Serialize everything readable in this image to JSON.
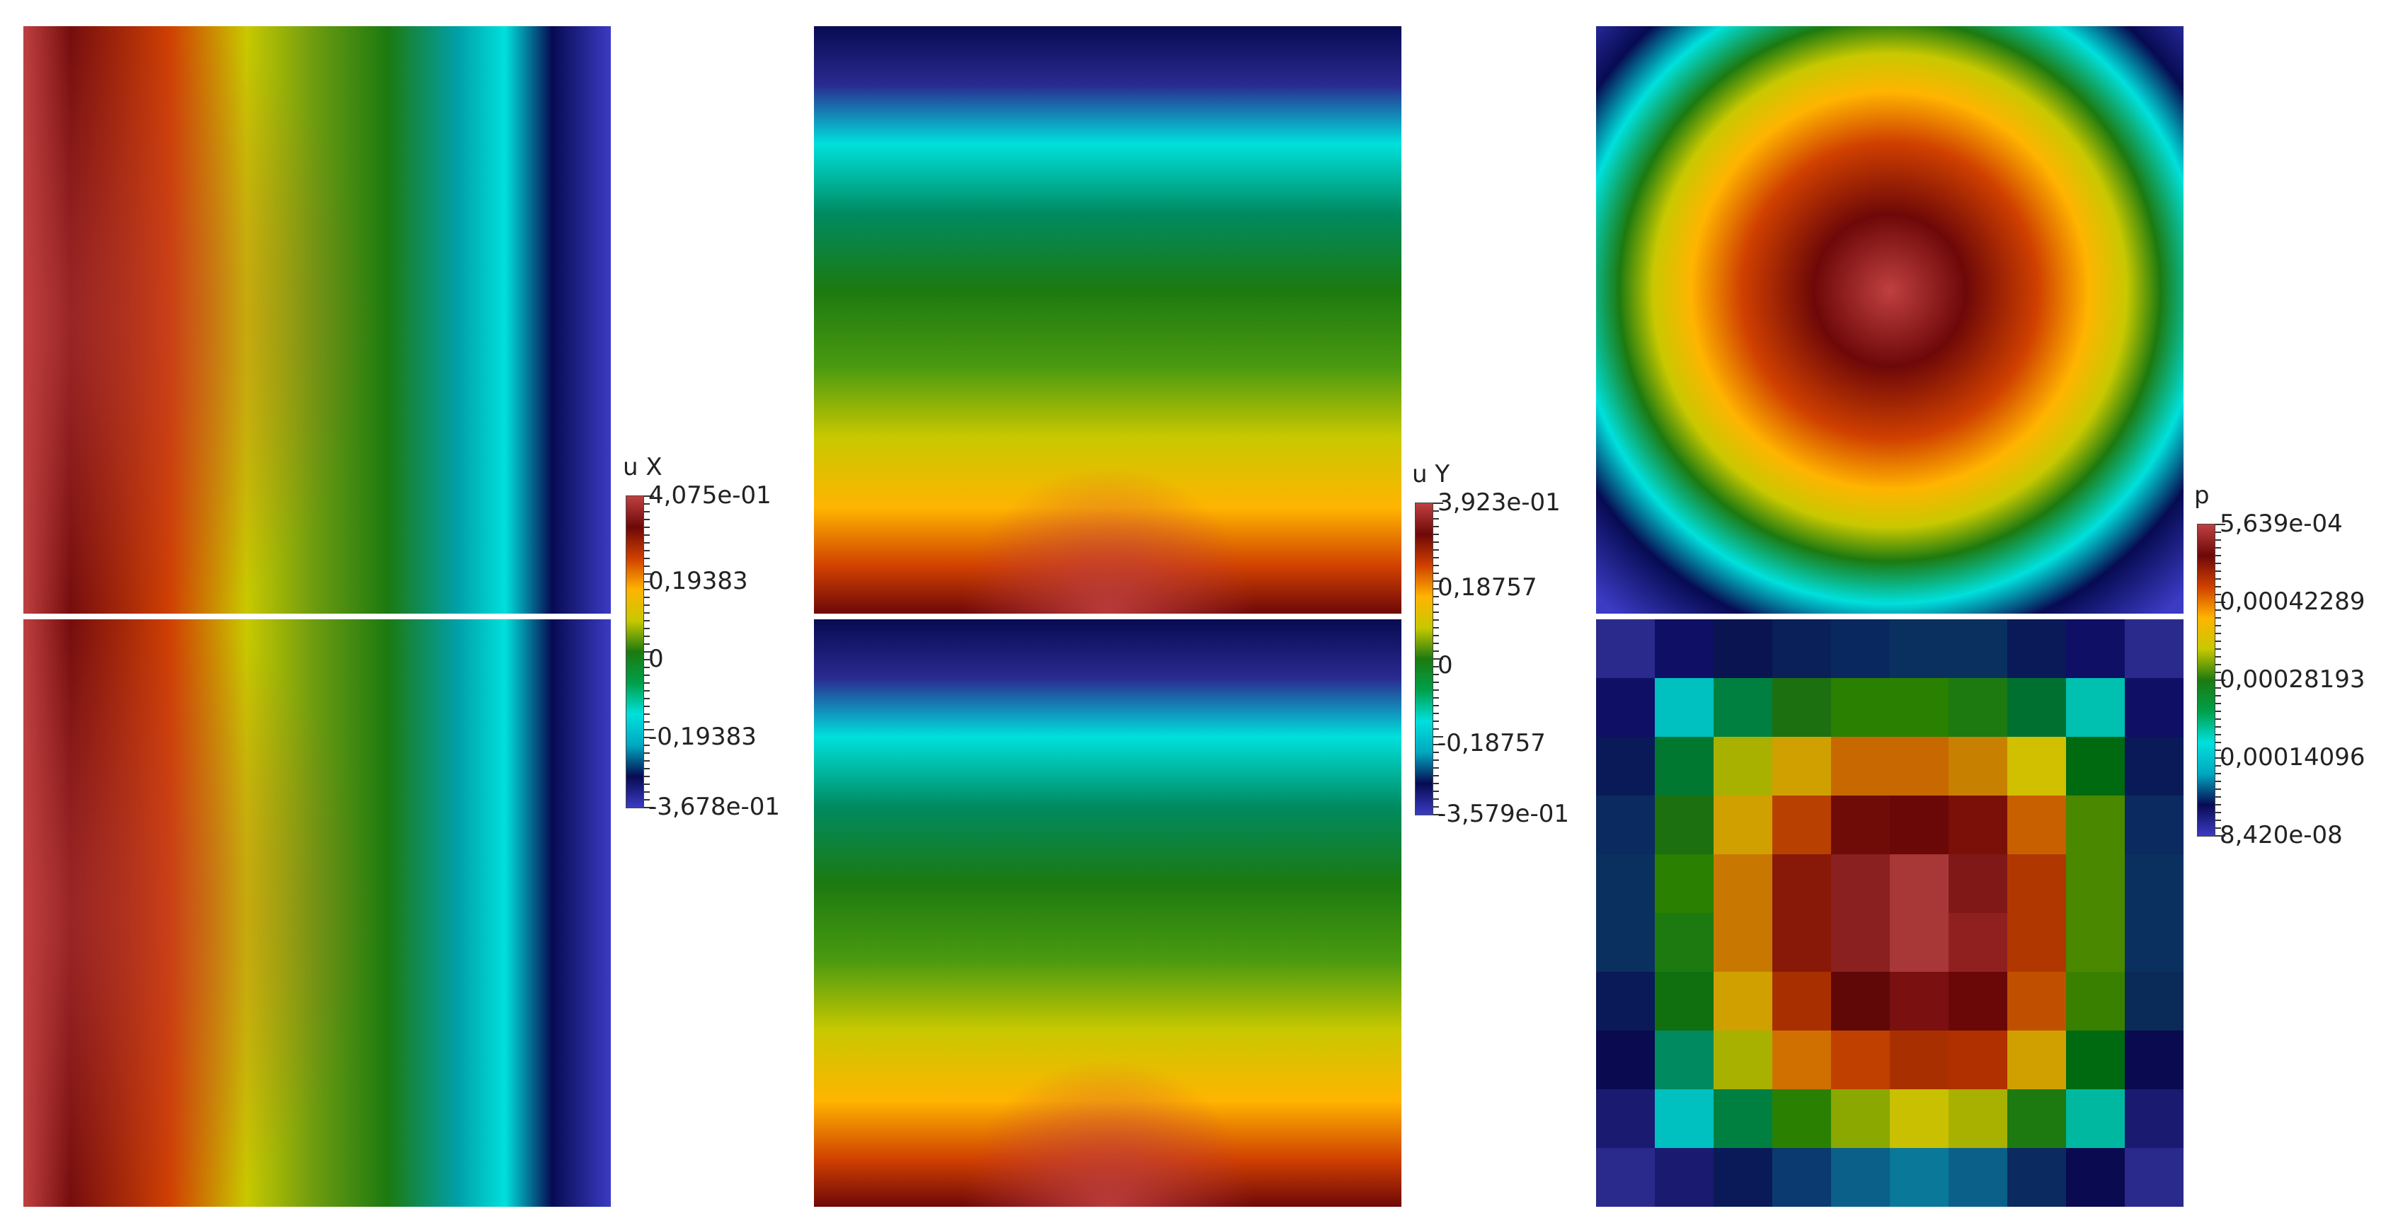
{
  "colormap": [
    "#3b3bc4",
    "#070b52",
    "#00a8c0",
    "#00e0dc",
    "#00a04a",
    "#1c7a10",
    "#c8c800",
    "#ffb400",
    "#d04000",
    "#6e0808",
    "#c04040"
  ],
  "panels": [
    {
      "id": "ux-top"
    },
    {
      "id": "ux-bottom"
    },
    {
      "id": "uy-top"
    },
    {
      "id": "uy-bottom"
    },
    {
      "id": "p-top"
    },
    {
      "id": "p-bottom"
    }
  ],
  "chart_data": [
    {
      "type": "heatmap",
      "title": "",
      "variable": "u X",
      "colorbar": {
        "title": "u X",
        "max": 0.4075,
        "min": -0.3678,
        "max_label": "4,075e-01",
        "min_label": "-3,678e-01",
        "ticks": [
          {
            "label": "4,075e-01",
            "value": 0.4075
          },
          {
            "label": "0,19383",
            "value": 0.19383
          },
          {
            "label": "0",
            "value": 0
          },
          {
            "label": "-0,19383",
            "value": -0.19383
          },
          {
            "label": "-3,678e-01",
            "value": -0.3678
          }
        ]
      },
      "fields": [
        "ux-top",
        "ux-bottom"
      ]
    },
    {
      "type": "heatmap",
      "title": "",
      "variable": "u Y",
      "colorbar": {
        "title": "u Y",
        "max": 0.3923,
        "min": -0.3579,
        "max_label": "3,923e-01",
        "min_label": "-3,579e-01",
        "ticks": [
          {
            "label": "3,923e-01",
            "value": 0.3923
          },
          {
            "label": "0,18757",
            "value": 0.18757
          },
          {
            "label": "0",
            "value": 0
          },
          {
            "label": "-0,18757",
            "value": -0.18757
          },
          {
            "label": "-3,579e-01",
            "value": -0.3579
          }
        ]
      },
      "fields": [
        "uy-top",
        "uy-bottom"
      ]
    },
    {
      "type": "heatmap",
      "title": "",
      "variable": "p",
      "colorbar": {
        "title": "p",
        "max": 0.0005639,
        "min": 8.42e-08,
        "max_label": "5,639e-04",
        "min_label": "8,420e-08",
        "ticks": [
          {
            "label": "5,639e-04",
            "value": 0.0005639
          },
          {
            "label": "0,00042289",
            "value": 0.00042289
          },
          {
            "label": "0,00028193",
            "value": 0.00028193
          },
          {
            "label": "0,00014096",
            "value": 0.00014096
          },
          {
            "label": "8,420e-08",
            "value": 8.42e-08
          }
        ]
      },
      "fields": [
        "p-top",
        "p-bottom"
      ],
      "grid_bottom": [
        [
          "#2a2a8c",
          "#0f0f66",
          "#0a1450",
          "#0a2058",
          "#0a2860",
          "#0a3060",
          "#0a3060",
          "#0a1a58",
          "#0f0f66",
          "#2a2a8c"
        ],
        [
          "#0f0f66",
          "#00c0c0",
          "#008040",
          "#1c7010",
          "#2a8000",
          "#2a8000",
          "#1c7a10",
          "#007030",
          "#00c0b0",
          "#0f0f66"
        ],
        [
          "#0a1a58",
          "#007830",
          "#a8b000",
          "#d0a000",
          "#c86800",
          "#c86800",
          "#c88000",
          "#d0c000",
          "#006a10",
          "#0a1a58"
        ],
        [
          "#0a2a60",
          "#1c7010",
          "#d0a000",
          "#b84000",
          "#700c08",
          "#6a0808",
          "#7a1008",
          "#c86000",
          "#4a8800",
          "#0a2a60"
        ],
        [
          "#0a3060",
          "#2a8000",
          "#c87800",
          "#881808",
          "#8a2020",
          "#a83838",
          "#801818",
          "#b03800",
          "#4a8800",
          "#0a3060"
        ],
        [
          "#0a3060",
          "#1c7a10",
          "#c87800",
          "#881808",
          "#8a2020",
          "#a83838",
          "#902020",
          "#b03800",
          "#4a8800",
          "#0a3060"
        ],
        [
          "#0a1a58",
          "#107010",
          "#d0a000",
          "#a83000",
          "#600808",
          "#7a1010",
          "#6a0808",
          "#c05000",
          "#3a8000",
          "#0a2a58"
        ],
        [
          "#0a0a50",
          "#008a60",
          "#a8b000",
          "#d07000",
          "#c04000",
          "#a83000",
          "#b03000",
          "#d0a000",
          "#006a10",
          "#0a0a50"
        ],
        [
          "#1a1a70",
          "#00c0c0",
          "#008040",
          "#2a8000",
          "#8aa800",
          "#c8c000",
          "#a8b000",
          "#1c7a10",
          "#00b8a0",
          "#1a1a70"
        ],
        [
          "#2a2a8c",
          "#1a1a70",
          "#0a1a58",
          "#0a3a70",
          "#0a6088",
          "#0a7898",
          "#0a6088",
          "#0a2a60",
          "#0a0a50",
          "#2a2a8c"
        ]
      ]
    }
  ]
}
